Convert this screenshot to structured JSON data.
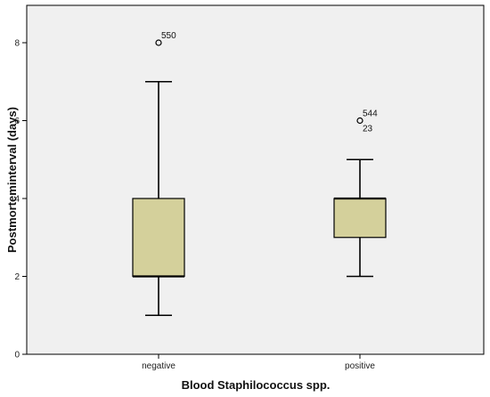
{
  "chart_data": {
    "type": "boxplot",
    "title": "",
    "xlabel": "Blood Staphilococcus spp.",
    "ylabel": "Postmorteminterval (days)",
    "ylim": [
      0,
      9
    ],
    "yticks": [
      0,
      2,
      4,
      6,
      8
    ],
    "grid": false,
    "categories": [
      "negative",
      "positive"
    ],
    "boxes": [
      {
        "category": "negative",
        "whisker_low": 1,
        "q1": 2,
        "median": 2,
        "q3": 4,
        "whisker_high": 7,
        "outliers": [
          {
            "value": 8,
            "label": "550"
          }
        ]
      },
      {
        "category": "positive",
        "whisker_low": 2,
        "q1": 3,
        "median": 4,
        "q3": 4,
        "whisker_high": 5,
        "outliers": [
          {
            "value": 6,
            "label": "544"
          },
          {
            "value": 6,
            "label": "23"
          }
        ]
      }
    ],
    "colors": {
      "plot_background": "#f0f0f0",
      "box_fill": "#d4d09b",
      "line": "#000000"
    }
  }
}
